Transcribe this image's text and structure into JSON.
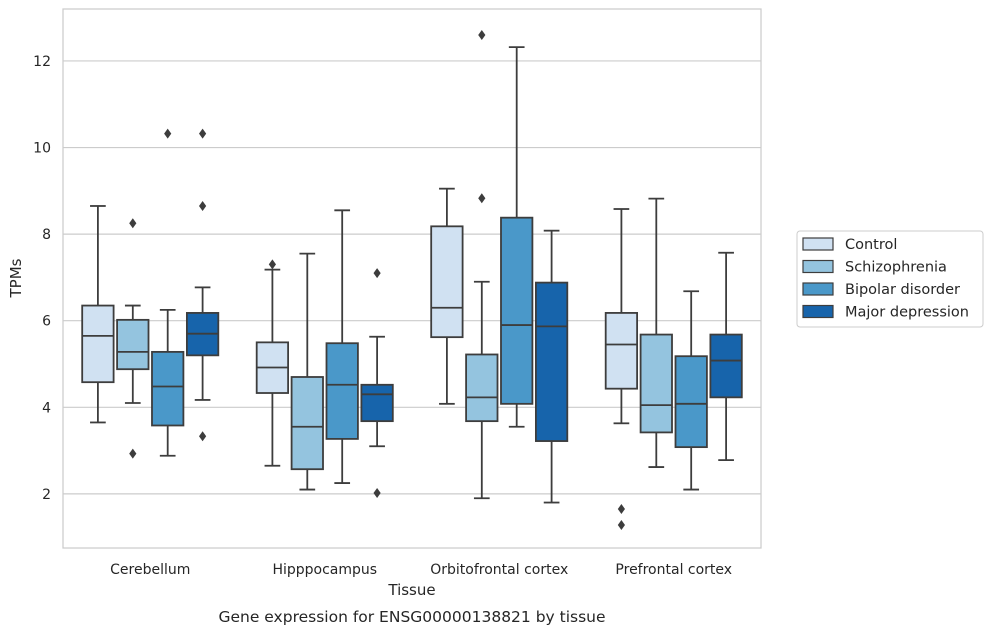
{
  "chart_data": {
    "type": "box",
    "xlabel": "Tissue",
    "ylabel": "TPMs",
    "caption": "Gene expression for ENSG00000138821 by tissue",
    "ylim": [
      0.75,
      13.2
    ],
    "yticks": [
      2,
      4,
      6,
      8,
      10,
      12
    ],
    "grid": "horizontal",
    "legend_position": "right",
    "categories": [
      "Cerebellum",
      "Hipppocampus",
      "Orbitofrontal cortex",
      "Prefrontal cortex"
    ],
    "series": [
      {
        "name": "Control",
        "color": "#d0e1f2",
        "boxes": [
          {
            "whislo": 3.65,
            "q1": 4.58,
            "med": 5.65,
            "q3": 6.35,
            "whishi": 8.65,
            "fliers": []
          },
          {
            "whislo": 2.65,
            "q1": 4.33,
            "med": 4.92,
            "q3": 5.5,
            "whishi": 7.18,
            "fliers": [
              7.3
            ]
          },
          {
            "whislo": 4.08,
            "q1": 5.62,
            "med": 6.3,
            "q3": 8.18,
            "whishi": 9.05,
            "fliers": []
          },
          {
            "whislo": 3.63,
            "q1": 4.43,
            "med": 5.45,
            "q3": 6.18,
            "whishi": 8.58,
            "fliers": [
              1.65,
              1.28
            ]
          }
        ]
      },
      {
        "name": "Schizophrenia",
        "color": "#94c4df",
        "boxes": [
          {
            "whislo": 4.1,
            "q1": 4.88,
            "med": 5.28,
            "q3": 6.02,
            "whishi": 6.35,
            "fliers": [
              8.25,
              2.93
            ]
          },
          {
            "whislo": 2.1,
            "q1": 2.57,
            "med": 3.55,
            "q3": 4.7,
            "whishi": 7.55,
            "fliers": []
          },
          {
            "whislo": 1.9,
            "q1": 3.68,
            "med": 4.23,
            "q3": 5.22,
            "whishi": 6.9,
            "fliers": [
              8.83,
              12.6
            ]
          },
          {
            "whislo": 2.62,
            "q1": 3.42,
            "med": 4.05,
            "q3": 5.68,
            "whishi": 8.82,
            "fliers": []
          }
        ]
      },
      {
        "name": "Bipolar disorder",
        "color": "#4a98c9",
        "boxes": [
          {
            "whislo": 2.88,
            "q1": 3.58,
            "med": 4.48,
            "q3": 5.28,
            "whishi": 6.25,
            "fliers": [
              10.32
            ]
          },
          {
            "whislo": 2.25,
            "q1": 3.27,
            "med": 4.52,
            "q3": 5.48,
            "whishi": 8.55,
            "fliers": []
          },
          {
            "whislo": 3.55,
            "q1": 4.08,
            "med": 5.9,
            "q3": 8.38,
            "whishi": 12.32,
            "fliers": []
          },
          {
            "whislo": 2.1,
            "q1": 3.08,
            "med": 4.08,
            "q3": 5.18,
            "whishi": 6.68,
            "fliers": []
          }
        ]
      },
      {
        "name": "Major depression",
        "color": "#1764ab",
        "boxes": [
          {
            "whislo": 4.17,
            "q1": 5.2,
            "med": 5.7,
            "q3": 6.18,
            "whishi": 6.77,
            "fliers": [
              10.32,
              8.65,
              3.33
            ]
          },
          {
            "whislo": 3.1,
            "q1": 3.68,
            "med": 4.3,
            "q3": 4.52,
            "whishi": 5.63,
            "fliers": [
              7.1,
              2.02
            ]
          },
          {
            "whislo": 1.8,
            "q1": 3.22,
            "med": 5.87,
            "q3": 6.88,
            "whishi": 8.08,
            "fliers": []
          },
          {
            "whislo": 2.78,
            "q1": 4.23,
            "med": 5.08,
            "q3": 5.68,
            "whishi": 7.57,
            "fliers": []
          }
        ]
      }
    ]
  }
}
